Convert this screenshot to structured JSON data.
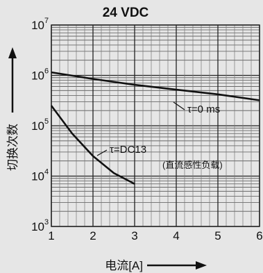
{
  "chart_data": {
    "type": "line",
    "title": "24 VDC",
    "xlabel": "电流[A]",
    "ylabel": "切换次数",
    "x_ticks": [
      1,
      2,
      3,
      4,
      5,
      6
    ],
    "y_scale": "log",
    "y_ticks": [
      {
        "value": 1000,
        "mantissa": "10",
        "exponent": "3"
      },
      {
        "value": 10000,
        "mantissa": "10",
        "exponent": "4"
      },
      {
        "value": 100000,
        "mantissa": "10",
        "exponent": "5"
      },
      {
        "value": 1000000,
        "mantissa": "10",
        "exponent": "6"
      },
      {
        "value": 10000000,
        "mantissa": "10",
        "exponent": "7"
      }
    ],
    "xlim": [
      1,
      6
    ],
    "ylim": [
      1000,
      10000000
    ],
    "grid": true,
    "series": [
      {
        "name": "τ=0 ms",
        "x": [
          1,
          2,
          3,
          4,
          5,
          6
        ],
        "y": [
          1150000,
          850000,
          650000,
          520000,
          420000,
          320000
        ]
      },
      {
        "name": "τ=DC13",
        "note": "(直流感性负载)",
        "x": [
          1,
          1.5,
          2,
          2.5,
          3
        ],
        "y": [
          250000,
          70000,
          25000,
          11500,
          7000
        ]
      }
    ]
  }
}
